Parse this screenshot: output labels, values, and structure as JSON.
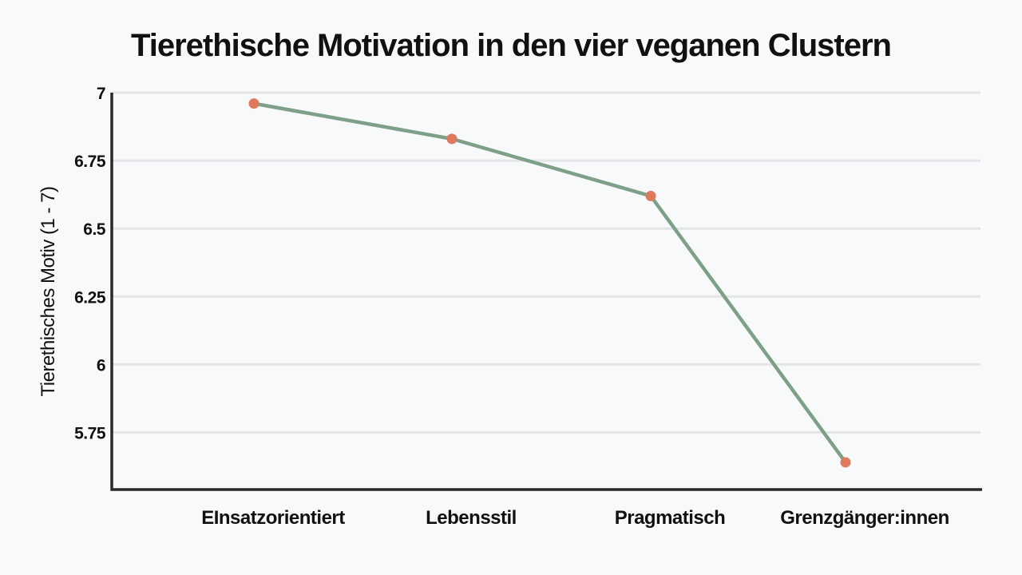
{
  "chart_data": {
    "type": "line",
    "title": "Tierethische Motivation in den vier veganen Clustern",
    "xlabel": "",
    "ylabel": "Tierethisches Motiv (1 - 7)",
    "categories": [
      "EInsatzorientiert",
      "Lebensstil",
      "Pragmatisch",
      "Grenzgänger:innen"
    ],
    "series": [
      {
        "values": [
          6.96,
          6.83,
          6.62,
          5.64
        ]
      }
    ],
    "yticks": [
      5.75,
      6,
      6.25,
      6.5,
      6.75,
      7
    ],
    "ytick_labels": [
      "5.75",
      "6",
      "6.25",
      "6.5",
      "6.75",
      "7"
    ],
    "ylim": [
      5.54,
      7
    ],
    "grid": true,
    "legend": "none",
    "colors": {
      "line": "#7fa088",
      "marker": "#e07a5f",
      "grid": "#e3e5e8",
      "axis": "#2a2a2a",
      "background": "#f8f9fb"
    }
  }
}
